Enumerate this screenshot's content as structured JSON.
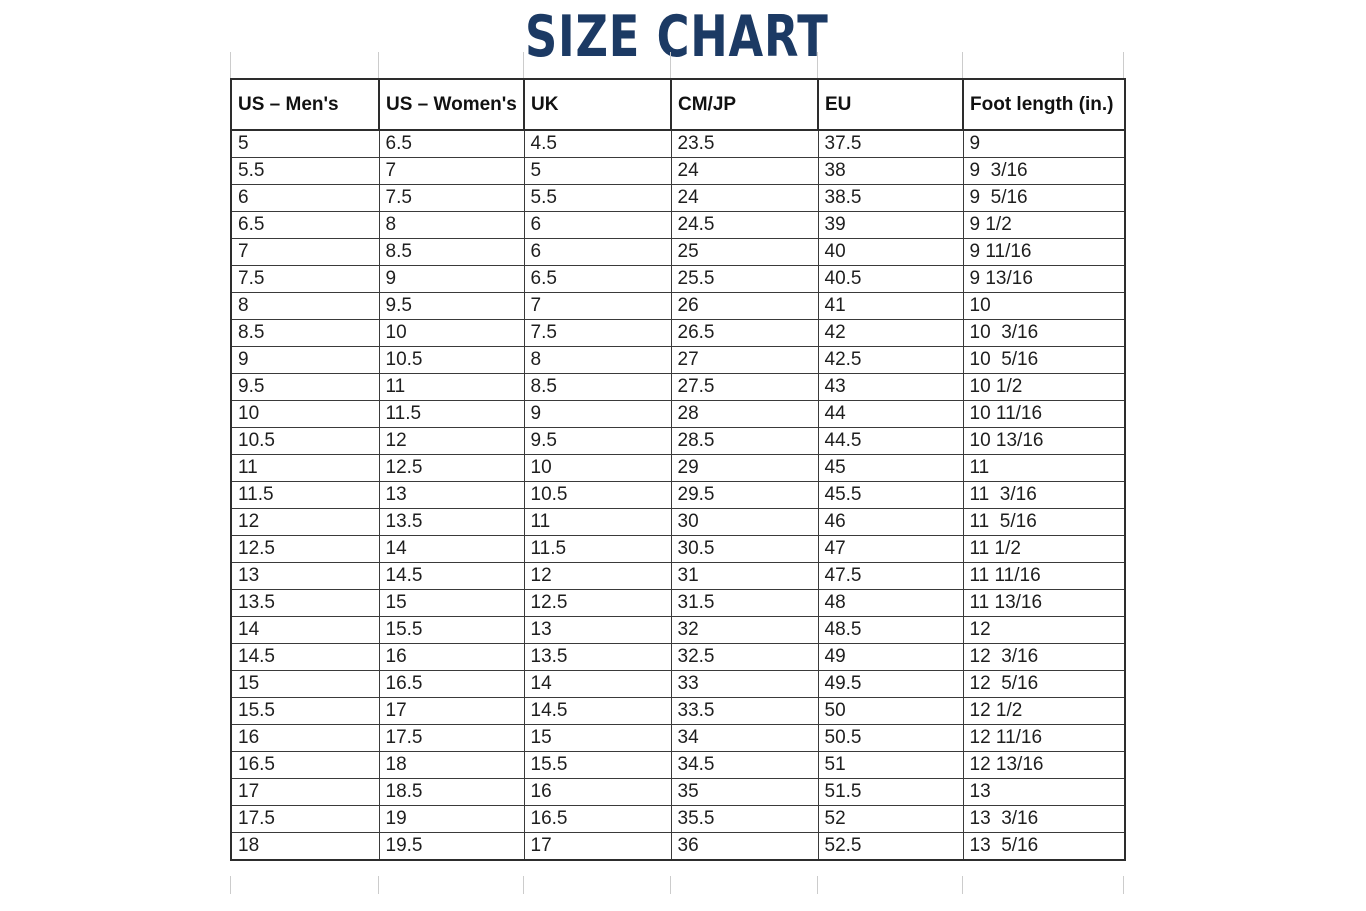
{
  "chart_data": {
    "type": "table",
    "title": "SIZE CHART",
    "title_color": "#1c3a64",
    "columns": [
      "US – Men's",
      "US – Women's",
      "UK",
      "CM/JP",
      "EU",
      "Foot length (in.)"
    ],
    "rows": [
      [
        "5",
        "6.5",
        "4.5",
        "23.5",
        "37.5",
        "9"
      ],
      [
        "5.5",
        "7",
        "5",
        "24",
        "38",
        "9  3/16"
      ],
      [
        "6",
        "7.5",
        "5.5",
        "24",
        "38.5",
        "9  5/16"
      ],
      [
        "6.5",
        "8",
        "6",
        "24.5",
        "39",
        "9 1/2"
      ],
      [
        "7",
        "8.5",
        "6",
        "25",
        "40",
        "9 11/16"
      ],
      [
        "7.5",
        "9",
        "6.5",
        "25.5",
        "40.5",
        "9 13/16"
      ],
      [
        "8",
        "9.5",
        "7",
        "26",
        "41",
        "10"
      ],
      [
        "8.5",
        "10",
        "7.5",
        "26.5",
        "42",
        "10  3/16"
      ],
      [
        "9",
        "10.5",
        "8",
        "27",
        "42.5",
        "10  5/16"
      ],
      [
        "9.5",
        "11",
        "8.5",
        "27.5",
        "43",
        "10 1/2"
      ],
      [
        "10",
        "11.5",
        "9",
        "28",
        "44",
        "10 11/16"
      ],
      [
        "10.5",
        "12",
        "9.5",
        "28.5",
        "44.5",
        "10 13/16"
      ],
      [
        "11",
        "12.5",
        "10",
        "29",
        "45",
        "11"
      ],
      [
        "11.5",
        "13",
        "10.5",
        "29.5",
        "45.5",
        "11  3/16"
      ],
      [
        "12",
        "13.5",
        "11",
        "30",
        "46",
        "11  5/16"
      ],
      [
        "12.5",
        "14",
        "11.5",
        "30.5",
        "47",
        "11 1/2"
      ],
      [
        "13",
        "14.5",
        "12",
        "31",
        "47.5",
        "11 11/16"
      ],
      [
        "13.5",
        "15",
        "12.5",
        "31.5",
        "48",
        "11 13/16"
      ],
      [
        "14",
        "15.5",
        "13",
        "32",
        "48.5",
        "12"
      ],
      [
        "14.5",
        "16",
        "13.5",
        "32.5",
        "49",
        "12  3/16"
      ],
      [
        "15",
        "16.5",
        "14",
        "33",
        "49.5",
        "12  5/16"
      ],
      [
        "15.5",
        "17",
        "14.5",
        "33.5",
        "50",
        "12 1/2"
      ],
      [
        "16",
        "17.5",
        "15",
        "34",
        "50.5",
        "12 11/16"
      ],
      [
        "16.5",
        "18",
        "15.5",
        "34.5",
        "51",
        "12 13/16"
      ],
      [
        "17",
        "18.5",
        "16",
        "35",
        "51.5",
        "13"
      ],
      [
        "17.5",
        "19",
        "16.5",
        "35.5",
        "52",
        "13  3/16"
      ],
      [
        "18",
        "19.5",
        "17",
        "36",
        "52.5",
        "13  5/16"
      ]
    ]
  }
}
